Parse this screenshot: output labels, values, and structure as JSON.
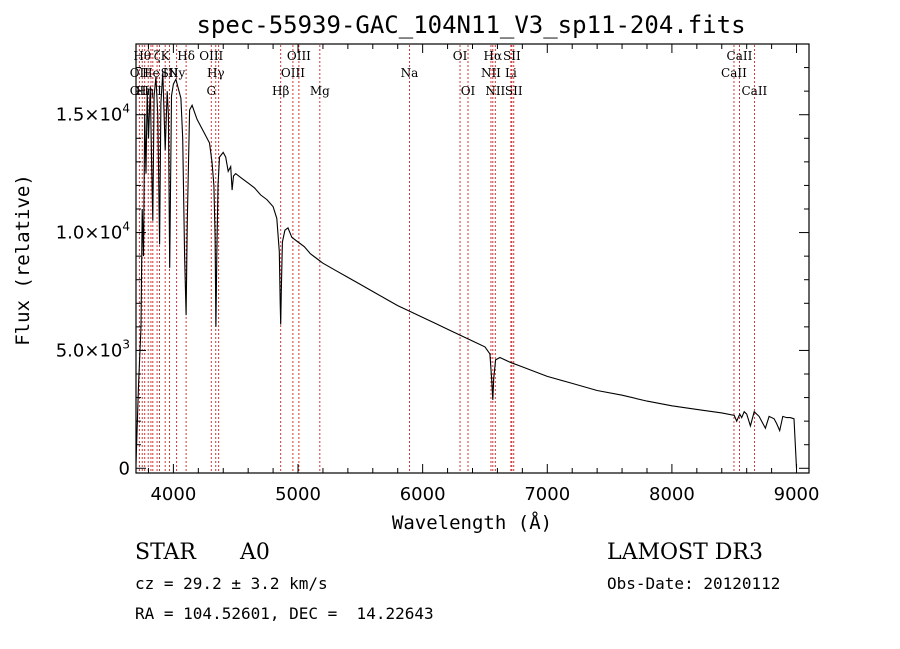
{
  "chart_data": {
    "type": "line",
    "title": "spec-55939-GAC_104N11_V3_sp11-204.fits",
    "xlabel": "Wavelength (Å)",
    "ylabel": "Flux (relative)",
    "xlim": [
      3700,
      9100
    ],
    "ylim": [
      -200,
      18000
    ],
    "x_ticks": [
      4000,
      5000,
      6000,
      7000,
      8000,
      9000
    ],
    "y_ticks": [
      0,
      5000,
      10000,
      15000
    ],
    "y_tick_labels": {
      "0": {
        "mantissa": "0"
      },
      "5000": {
        "mantissa": "5.0×10",
        "exp": "3"
      },
      "10000": {
        "mantissa": "1.0×10",
        "exp": "4"
      },
      "15000": {
        "mantissa": "1.5×10",
        "exp": "4"
      }
    },
    "series": [
      {
        "name": "spectrum",
        "color": "#000000",
        "points": [
          [
            3700,
            200
          ],
          [
            3720,
            3500
          ],
          [
            3740,
            6000
          ],
          [
            3750,
            11000
          ],
          [
            3760,
            9000
          ],
          [
            3770,
            15000
          ],
          [
            3780,
            12500
          ],
          [
            3790,
            16000
          ],
          [
            3800,
            14000
          ],
          [
            3815,
            16200
          ],
          [
            3825,
            13000
          ],
          [
            3835,
            10500
          ],
          [
            3845,
            15800
          ],
          [
            3860,
            16600
          ],
          [
            3875,
            15000
          ],
          [
            3889,
            9500
          ],
          [
            3900,
            15500
          ],
          [
            3915,
            16800
          ],
          [
            3934,
            13500
          ],
          [
            3950,
            16000
          ],
          [
            3960,
            15000
          ],
          [
            3970,
            8500
          ],
          [
            3985,
            15800
          ],
          [
            4000,
            16300
          ],
          [
            4020,
            16500
          ],
          [
            4040,
            16100
          ],
          [
            4060,
            15700
          ],
          [
            4075,
            14000
          ],
          [
            4090,
            9000
          ],
          [
            4102,
            6500
          ],
          [
            4112,
            10500
          ],
          [
            4130,
            15200
          ],
          [
            4150,
            15400
          ],
          [
            4170,
            15100
          ],
          [
            4190,
            14800
          ],
          [
            4210,
            14600
          ],
          [
            4230,
            14400
          ],
          [
            4260,
            14100
          ],
          [
            4290,
            13800
          ],
          [
            4310,
            13000
          ],
          [
            4325,
            12000
          ],
          [
            4335,
            9800
          ],
          [
            4341,
            6000
          ],
          [
            4348,
            9000
          ],
          [
            4358,
            12000
          ],
          [
            4370,
            13200
          ],
          [
            4400,
            13400
          ],
          [
            4420,
            13200
          ],
          [
            4440,
            12600
          ],
          [
            4460,
            12800
          ],
          [
            4471,
            11800
          ],
          [
            4482,
            12400
          ],
          [
            4500,
            12500
          ],
          [
            4550,
            12300
          ],
          [
            4600,
            12100
          ],
          [
            4650,
            11900
          ],
          [
            4700,
            11600
          ],
          [
            4750,
            11400
          ],
          [
            4800,
            11100
          ],
          [
            4830,
            10600
          ],
          [
            4850,
            9200
          ],
          [
            4857,
            7000
          ],
          [
            4861,
            6100
          ],
          [
            4866,
            7500
          ],
          [
            4875,
            9600
          ],
          [
            4895,
            10100
          ],
          [
            4920,
            10200
          ],
          [
            4950,
            9800
          ],
          [
            5000,
            9600
          ],
          [
            5050,
            9400
          ],
          [
            5100,
            9100
          ],
          [
            5150,
            8900
          ],
          [
            5200,
            8700
          ],
          [
            5300,
            8400
          ],
          [
            5400,
            8100
          ],
          [
            5500,
            7800
          ],
          [
            5600,
            7500
          ],
          [
            5700,
            7200
          ],
          [
            5800,
            6900
          ],
          [
            5900,
            6650
          ],
          [
            6000,
            6400
          ],
          [
            6100,
            6150
          ],
          [
            6200,
            5900
          ],
          [
            6300,
            5650
          ],
          [
            6400,
            5400
          ],
          [
            6500,
            5150
          ],
          [
            6540,
            4850
          ],
          [
            6555,
            3700
          ],
          [
            6563,
            2900
          ],
          [
            6570,
            3800
          ],
          [
            6585,
            4600
          ],
          [
            6620,
            4700
          ],
          [
            6700,
            4500
          ],
          [
            6800,
            4300
          ],
          [
            6900,
            4100
          ],
          [
            7000,
            3900
          ],
          [
            7200,
            3600
          ],
          [
            7400,
            3300
          ],
          [
            7600,
            3100
          ],
          [
            7800,
            2850
          ],
          [
            8000,
            2650
          ],
          [
            8200,
            2500
          ],
          [
            8400,
            2350
          ],
          [
            8500,
            2250
          ],
          [
            8520,
            2000
          ],
          [
            8545,
            2300
          ],
          [
            8560,
            2150
          ],
          [
            8580,
            2400
          ],
          [
            8600,
            2300
          ],
          [
            8630,
            1800
          ],
          [
            8660,
            2400
          ],
          [
            8700,
            2200
          ],
          [
            8720,
            2000
          ],
          [
            8750,
            1700
          ],
          [
            8780,
            2200
          ],
          [
            8820,
            2100
          ],
          [
            8840,
            1900
          ],
          [
            8865,
            1600
          ],
          [
            8890,
            2200
          ],
          [
            8920,
            2150
          ],
          [
            8950,
            2150
          ],
          [
            8980,
            2100
          ],
          [
            9000,
            0
          ]
        ]
      }
    ],
    "lines": [
      {
        "x": 3727,
        "labels": [
          {
            "row": 1,
            "text": "OII"
          },
          {
            "row": 2,
            "text": "OII"
          }
        ]
      },
      {
        "x": 3750,
        "labels": [
          {
            "row": 0,
            "text": "Hθ"
          }
        ]
      },
      {
        "x": 3770,
        "labels": [
          {
            "row": 2,
            "text": "Hη"
          }
        ]
      },
      {
        "x": 3798,
        "labels": []
      },
      {
        "x": 3820,
        "labels": [
          {
            "row": 1,
            "text": "He"
          }
        ]
      },
      {
        "x": 3835,
        "labels": []
      },
      {
        "x": 3869,
        "labels": [
          {
            "row": 0,
            "text": "ζ"
          }
        ]
      },
      {
        "x": 3889,
        "labels": [
          {
            "row": 2,
            "text": "I"
          }
        ]
      },
      {
        "x": 3934,
        "labels": [
          {
            "row": 0,
            "text": "K"
          },
          {
            "row": 1,
            "text": "I"
          }
        ]
      },
      {
        "x": 3969,
        "labels": [
          {
            "row": 1,
            "text": "SII"
          }
        ]
      },
      {
        "x": 4026,
        "labels": [
          {
            "row": 1,
            "text": "Ny"
          }
        ]
      },
      {
        "x": 4102,
        "labels": [
          {
            "row": 0,
            "text": "Hδ"
          }
        ]
      },
      {
        "x": 4304,
        "labels": [
          {
            "row": 0,
            "text": "OIII"
          },
          {
            "row": 2,
            "text": "G"
          }
        ]
      },
      {
        "x": 4340,
        "labels": [
          {
            "row": 1,
            "text": "Hγ"
          }
        ]
      },
      {
        "x": 4363,
        "labels": []
      },
      {
        "x": 4861,
        "labels": [
          {
            "row": 2,
            "text": "Hβ"
          }
        ]
      },
      {
        "x": 4959,
        "labels": [
          {
            "row": 1,
            "text": "OIII"
          }
        ]
      },
      {
        "x": 5007,
        "labels": [
          {
            "row": 0,
            "text": "OIII"
          }
        ]
      },
      {
        "x": 5175,
        "labels": [
          {
            "row": 2,
            "text": "Mg"
          }
        ]
      },
      {
        "x": 5894,
        "labels": [
          {
            "row": 1,
            "text": "Na"
          }
        ]
      },
      {
        "x": 6300,
        "labels": [
          {
            "row": 0,
            "text": "OI"
          }
        ]
      },
      {
        "x": 6364,
        "labels": [
          {
            "row": 2,
            "text": "OI"
          }
        ]
      },
      {
        "x": 6548,
        "labels": [
          {
            "row": 1,
            "text": "NII"
          }
        ]
      },
      {
        "x": 6563,
        "labels": [
          {
            "row": 0,
            "text": "Hα"
          }
        ]
      },
      {
        "x": 6583,
        "labels": [
          {
            "row": 2,
            "text": "NII"
          }
        ]
      },
      {
        "x": 6708,
        "labels": [
          {
            "row": 1,
            "text": "Li"
          }
        ]
      },
      {
        "x": 6716,
        "labels": [
          {
            "row": 0,
            "text": "SII"
          }
        ]
      },
      {
        "x": 6731,
        "labels": [
          {
            "row": 2,
            "text": "SII"
          }
        ]
      },
      {
        "x": 8498,
        "labels": [
          {
            "row": 1,
            "text": "CaII"
          }
        ]
      },
      {
        "x": 8542,
        "labels": [
          {
            "row": 0,
            "text": "CaII"
          }
        ]
      },
      {
        "x": 8662,
        "labels": [
          {
            "row": 2,
            "text": "CaII"
          }
        ]
      }
    ],
    "line_color": "#cc2222"
  },
  "info": {
    "object_class": "STAR",
    "subclass": "A0",
    "survey": "LAMOST DR3",
    "cz": "cz = 29.2 ± 3.2 km/s",
    "obs_date": "Obs-Date: 20120112",
    "radec": "RA = 104.52601, DEC =  14.22643"
  }
}
